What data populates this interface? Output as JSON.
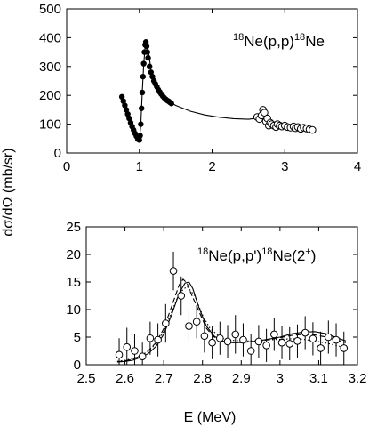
{
  "figure": {
    "ylabel": "dσ/dΩ (mb/sr)",
    "xlabel": "E (MeV)"
  },
  "chart_data": [
    {
      "type": "scatter",
      "annotation": {
        "pre_sup": "18",
        "a": "Ne(p,p)",
        "mid_sup": "18",
        "b": "Ne"
      },
      "xlim": [
        0,
        4
      ],
      "ylim": [
        0,
        500
      ],
      "x_ticks": [
        "0",
        "1",
        "2",
        "3",
        "4"
      ],
      "y_ticks": [
        "0",
        "100",
        "200",
        "300",
        "400",
        "500"
      ],
      "grid": false,
      "series": [
        {
          "style": "filled-circles",
          "x": [
            0.76,
            0.78,
            0.8,
            0.82,
            0.84,
            0.86,
            0.88,
            0.9,
            0.92,
            0.94,
            0.96,
            0.98,
            1.0,
            1.01,
            1.02,
            1.03,
            1.04,
            1.05,
            1.06,
            1.07,
            1.08,
            1.09,
            1.1,
            1.11,
            1.12,
            1.14,
            1.16,
            1.18,
            1.2,
            1.22,
            1.24,
            1.26,
            1.28,
            1.3,
            1.32,
            1.34,
            1.36,
            1.38,
            1.4,
            1.42,
            1.44
          ],
          "y": [
            195,
            180,
            165,
            150,
            135,
            120,
            105,
            92,
            80,
            68,
            58,
            48,
            45,
            60,
            100,
            155,
            210,
            265,
            310,
            350,
            375,
            385,
            370,
            350,
            330,
            300,
            280,
            265,
            250,
            240,
            230,
            220,
            212,
            205,
            198,
            192,
            187,
            183,
            180,
            176,
            172
          ]
        },
        {
          "style": "open-circles",
          "x": [
            2.62,
            2.65,
            2.68,
            2.7,
            2.72,
            2.74,
            2.76,
            2.78,
            2.8,
            2.82,
            2.85,
            2.88,
            2.9,
            2.93,
            2.96,
            3.0,
            3.04,
            3.08,
            3.12,
            3.15,
            3.18,
            3.22,
            3.26,
            3.3,
            3.34,
            3.38
          ],
          "y": [
            125,
            118,
            130,
            150,
            140,
            110,
            120,
            95,
            105,
            100,
            95,
            90,
            100,
            95,
            92,
            95,
            90,
            88,
            92,
            86,
            90,
            84,
            88,
            85,
            82,
            80
          ]
        },
        {
          "style": "line",
          "x": [
            0.76,
            0.8,
            0.84,
            0.88,
            0.92,
            0.96,
            1.0,
            1.02,
            1.04,
            1.06,
            1.08,
            1.1,
            1.12,
            1.16,
            1.2,
            1.25,
            1.3,
            1.4,
            1.5,
            1.7,
            1.9,
            2.1,
            2.3,
            2.5,
            2.6,
            2.65,
            2.7,
            2.75,
            2.8,
            2.9,
            3.0,
            3.1,
            3.2,
            3.3,
            3.38
          ],
          "y": [
            195,
            165,
            135,
            105,
            80,
            58,
            45,
            100,
            210,
            310,
            370,
            385,
            360,
            290,
            250,
            225,
            205,
            180,
            165,
            145,
            132,
            124,
            119,
            117,
            120,
            128,
            140,
            122,
            102,
            96,
            93,
            90,
            88,
            85,
            82
          ]
        }
      ]
    },
    {
      "type": "scatter",
      "annotation": {
        "pre_sup": "18",
        "a": "Ne(p,p')",
        "mid_sup": "18",
        "b": "Ne(2",
        "post_sup": "+",
        "c": ")"
      },
      "xlim": [
        2.5,
        3.2
      ],
      "ylim": [
        0,
        25
      ],
      "x_ticks": [
        "2.5",
        "2.6",
        "2.7",
        "2.8",
        "2.9",
        "3",
        "3.1",
        "3.2"
      ],
      "y_ticks": [
        "0",
        "5",
        "10",
        "15",
        "20",
        "25"
      ],
      "grid": false,
      "series": [
        {
          "style": "open-circles-errorbars",
          "x": [
            2.585,
            2.605,
            2.625,
            2.645,
            2.665,
            2.685,
            2.705,
            2.725,
            2.745,
            2.765,
            2.785,
            2.805,
            2.825,
            2.845,
            2.865,
            2.885,
            2.905,
            2.925,
            2.945,
            2.965,
            2.985,
            3.005,
            3.025,
            3.045,
            3.065,
            3.085,
            3.105,
            3.125,
            3.145,
            3.165
          ],
          "y": [
            1.8,
            3.2,
            2.5,
            1.5,
            4.8,
            4.5,
            7.5,
            17.0,
            12.5,
            7.0,
            7.8,
            5.2,
            4.0,
            4.8,
            4.2,
            5.5,
            4.5,
            2.5,
            4.2,
            3.5,
            5.5,
            4.0,
            3.8,
            4.3,
            5.8,
            4.7,
            3.0,
            5.0,
            4.5,
            3.0
          ],
          "err": [
            3.0,
            3.5,
            3.0,
            2.5,
            3.0,
            3.0,
            3.5,
            3.5,
            3.5,
            3.0,
            3.0,
            3.0,
            3.0,
            3.0,
            3.0,
            3.5,
            3.0,
            3.0,
            3.0,
            3.0,
            3.0,
            3.0,
            3.0,
            3.0,
            3.0,
            3.0,
            3.0,
            3.0,
            3.0,
            3.0
          ]
        },
        {
          "style": "solid-line",
          "x": [
            2.58,
            2.6,
            2.62,
            2.64,
            2.66,
            2.68,
            2.7,
            2.72,
            2.74,
            2.755,
            2.765,
            2.775,
            2.79,
            2.81,
            2.83,
            2.85,
            2.87,
            2.9,
            2.93,
            2.96,
            3.0,
            3.03,
            3.06,
            3.09,
            3.12,
            3.15,
            3.17
          ],
          "y": [
            0.5,
            0.6,
            0.8,
            1.3,
            2.0,
            3.3,
            5.5,
            9.0,
            13.0,
            14.8,
            15.0,
            13.8,
            10.5,
            7.0,
            5.2,
            4.3,
            4.0,
            4.0,
            4.2,
            4.5,
            5.0,
            5.6,
            5.9,
            6.0,
            5.6,
            4.8,
            4.3
          ]
        },
        {
          "style": "dashed-line",
          "x": [
            2.58,
            2.6,
            2.62,
            2.64,
            2.66,
            2.68,
            2.7,
            2.72,
            2.74,
            2.75,
            2.76,
            2.77,
            2.79,
            2.81,
            2.83,
            2.85,
            2.87,
            2.9,
            2.93,
            2.96,
            3.0,
            3.03,
            3.06,
            3.09,
            3.12,
            3.15,
            3.17
          ],
          "y": [
            0.5,
            0.7,
            1.0,
            1.6,
            2.5,
            4.0,
            6.5,
            10.5,
            14.5,
            15.5,
            14.8,
            13.0,
            9.8,
            6.6,
            5.0,
            4.2,
            4.0,
            4.0,
            4.2,
            4.4,
            4.9,
            5.3,
            5.5,
            5.4,
            5.0,
            4.4,
            4.0
          ]
        },
        {
          "style": "dotted-line",
          "x": [
            2.58,
            2.6,
            2.62,
            2.64,
            2.66,
            2.68,
            2.7,
            2.72,
            2.74,
            2.76,
            2.78,
            2.8,
            2.82,
            2.85,
            2.88,
            2.91,
            2.94,
            2.97,
            3.0,
            3.03,
            3.06,
            3.09,
            3.12,
            3.15,
            3.17
          ],
          "y": [
            0.6,
            0.8,
            1.1,
            1.6,
            2.4,
            3.8,
            6.0,
            9.5,
            13.0,
            14.2,
            12.5,
            9.0,
            6.5,
            4.8,
            4.4,
            4.3,
            4.3,
            4.5,
            4.6,
            4.7,
            4.6,
            4.3,
            3.9,
            3.4,
            3.0
          ]
        }
      ]
    }
  ]
}
